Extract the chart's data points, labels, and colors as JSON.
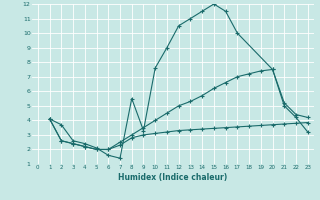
{
  "xlabel": "Humidex (Indice chaleur)",
  "xlim": [
    -0.5,
    23.5
  ],
  "ylim": [
    1,
    12
  ],
  "xticks": [
    0,
    1,
    2,
    3,
    4,
    5,
    6,
    7,
    8,
    9,
    10,
    11,
    12,
    13,
    14,
    15,
    16,
    17,
    18,
    19,
    20,
    21,
    22,
    23
  ],
  "yticks": [
    1,
    2,
    3,
    4,
    5,
    6,
    7,
    8,
    9,
    10,
    11,
    12
  ],
  "bg_color": "#c8e8e5",
  "line_color": "#1a6b6b",
  "grid_color": "#ffffff",
  "line1_x": [
    1,
    2,
    3,
    4,
    5,
    6,
    7,
    8,
    9,
    10,
    11,
    12,
    13,
    14,
    15,
    16,
    17,
    20,
    21,
    22,
    23
  ],
  "line1_y": [
    4.1,
    3.7,
    2.6,
    2.4,
    2.1,
    1.6,
    1.4,
    5.5,
    3.3,
    7.6,
    9.0,
    10.5,
    11.0,
    11.5,
    12.0,
    11.5,
    10.0,
    7.5,
    5.0,
    4.2,
    3.2
  ],
  "line2_x": [
    1,
    2,
    3,
    4,
    5,
    6,
    7,
    8,
    9,
    10,
    11,
    12,
    13,
    14,
    15,
    16,
    17,
    18,
    19,
    20,
    21,
    22,
    23
  ],
  "line2_y": [
    4.1,
    2.6,
    2.4,
    2.2,
    2.0,
    2.0,
    2.5,
    3.0,
    3.5,
    4.0,
    4.5,
    5.0,
    5.3,
    5.7,
    6.2,
    6.6,
    7.0,
    7.2,
    7.4,
    7.5,
    5.2,
    4.4,
    4.2
  ],
  "line3_x": [
    1,
    2,
    3,
    4,
    5,
    6,
    7,
    8,
    9,
    10,
    11,
    12,
    13,
    14,
    15,
    16,
    17,
    18,
    19,
    20,
    21,
    22,
    23
  ],
  "line3_y": [
    4.1,
    2.6,
    2.4,
    2.2,
    2.0,
    2.0,
    2.3,
    2.8,
    3.0,
    3.1,
    3.2,
    3.3,
    3.35,
    3.4,
    3.45,
    3.5,
    3.55,
    3.6,
    3.65,
    3.7,
    3.75,
    3.8,
    3.85
  ],
  "marker": "+"
}
